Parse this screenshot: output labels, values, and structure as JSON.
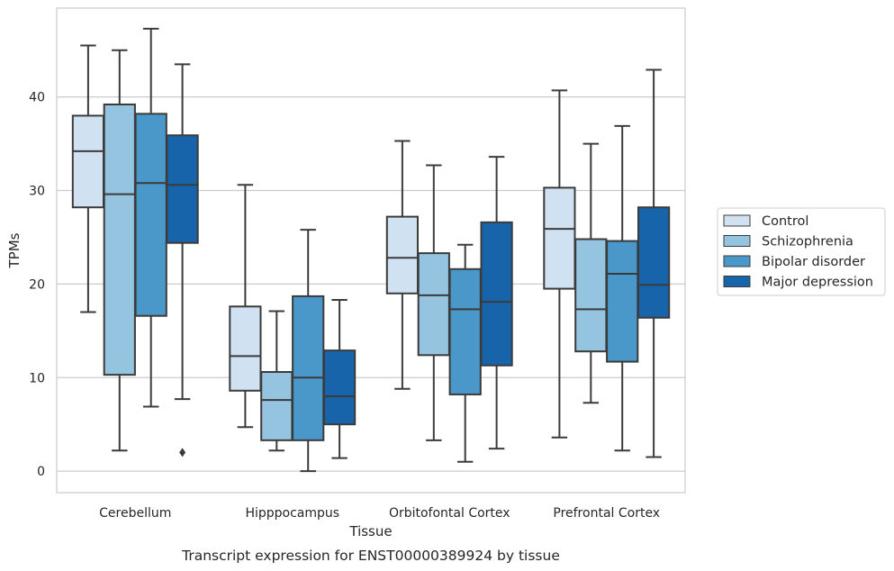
{
  "chart_data": {
    "type": "box",
    "title": "",
    "caption": "Transcript expression for ENST00000389924 by tissue",
    "xlabel": "Tissue",
    "ylabel": "TPMs",
    "ylim": [
      -2.3,
      49.5
    ],
    "yticks": [
      0,
      10,
      20,
      30,
      40
    ],
    "grid": "horizontal",
    "legend_position": "right",
    "categories": [
      "Cerebellum",
      "Hipppocampus",
      "Orbitofontal Cortex",
      "Prefrontal Cortex"
    ],
    "series": [
      {
        "name": "Control",
        "color": "#d0e1f2",
        "boxes": [
          {
            "whisker_low": 17.0,
            "q1": 28.2,
            "median": 34.2,
            "q3": 38.0,
            "whisker_high": 45.5,
            "outliers": []
          },
          {
            "whisker_low": 4.7,
            "q1": 8.6,
            "median": 12.3,
            "q3": 17.6,
            "whisker_high": 30.6,
            "outliers": []
          },
          {
            "whisker_low": 8.8,
            "q1": 19.0,
            "median": 22.8,
            "q3": 27.2,
            "whisker_high": 35.3,
            "outliers": []
          },
          {
            "whisker_low": 3.6,
            "q1": 19.5,
            "median": 25.9,
            "q3": 30.3,
            "whisker_high": 40.7,
            "outliers": []
          }
        ]
      },
      {
        "name": "Schizophrenia",
        "color": "#94c4df",
        "boxes": [
          {
            "whisker_low": 2.2,
            "q1": 10.3,
            "median": 29.6,
            "q3": 39.2,
            "whisker_high": 45.0,
            "outliers": []
          },
          {
            "whisker_low": 2.2,
            "q1": 3.3,
            "median": 7.6,
            "q3": 10.6,
            "whisker_high": 17.1,
            "outliers": []
          },
          {
            "whisker_low": 3.3,
            "q1": 12.4,
            "median": 18.8,
            "q3": 23.3,
            "whisker_high": 32.7,
            "outliers": []
          },
          {
            "whisker_low": 7.3,
            "q1": 12.8,
            "median": 17.3,
            "q3": 24.8,
            "whisker_high": 35.0,
            "outliers": []
          }
        ]
      },
      {
        "name": "Bipolar disorder",
        "color": "#4a98c9",
        "boxes": [
          {
            "whisker_low": 6.9,
            "q1": 16.6,
            "median": 30.8,
            "q3": 38.2,
            "whisker_high": 47.3,
            "outliers": []
          },
          {
            "whisker_low": 0.0,
            "q1": 3.3,
            "median": 10.0,
            "q3": 18.7,
            "whisker_high": 25.8,
            "outliers": []
          },
          {
            "whisker_low": 1.0,
            "q1": 8.2,
            "median": 17.3,
            "q3": 21.6,
            "whisker_high": 24.2,
            "outliers": []
          },
          {
            "whisker_low": 2.2,
            "q1": 11.7,
            "median": 21.1,
            "q3": 24.6,
            "whisker_high": 36.9,
            "outliers": []
          }
        ]
      },
      {
        "name": "Major depression",
        "color": "#1764ab",
        "boxes": [
          {
            "whisker_low": 7.7,
            "q1": 24.4,
            "median": 30.6,
            "q3": 35.9,
            "whisker_high": 43.5,
            "outliers": [
              2.0
            ]
          },
          {
            "whisker_low": 1.4,
            "q1": 5.0,
            "median": 8.0,
            "q3": 12.9,
            "whisker_high": 18.3,
            "outliers": []
          },
          {
            "whisker_low": 2.4,
            "q1": 11.3,
            "median": 18.1,
            "q3": 26.6,
            "whisker_high": 33.6,
            "outliers": []
          },
          {
            "whisker_low": 1.5,
            "q1": 16.4,
            "median": 19.9,
            "q3": 28.2,
            "whisker_high": 42.9,
            "outliers": []
          }
        ]
      }
    ]
  }
}
